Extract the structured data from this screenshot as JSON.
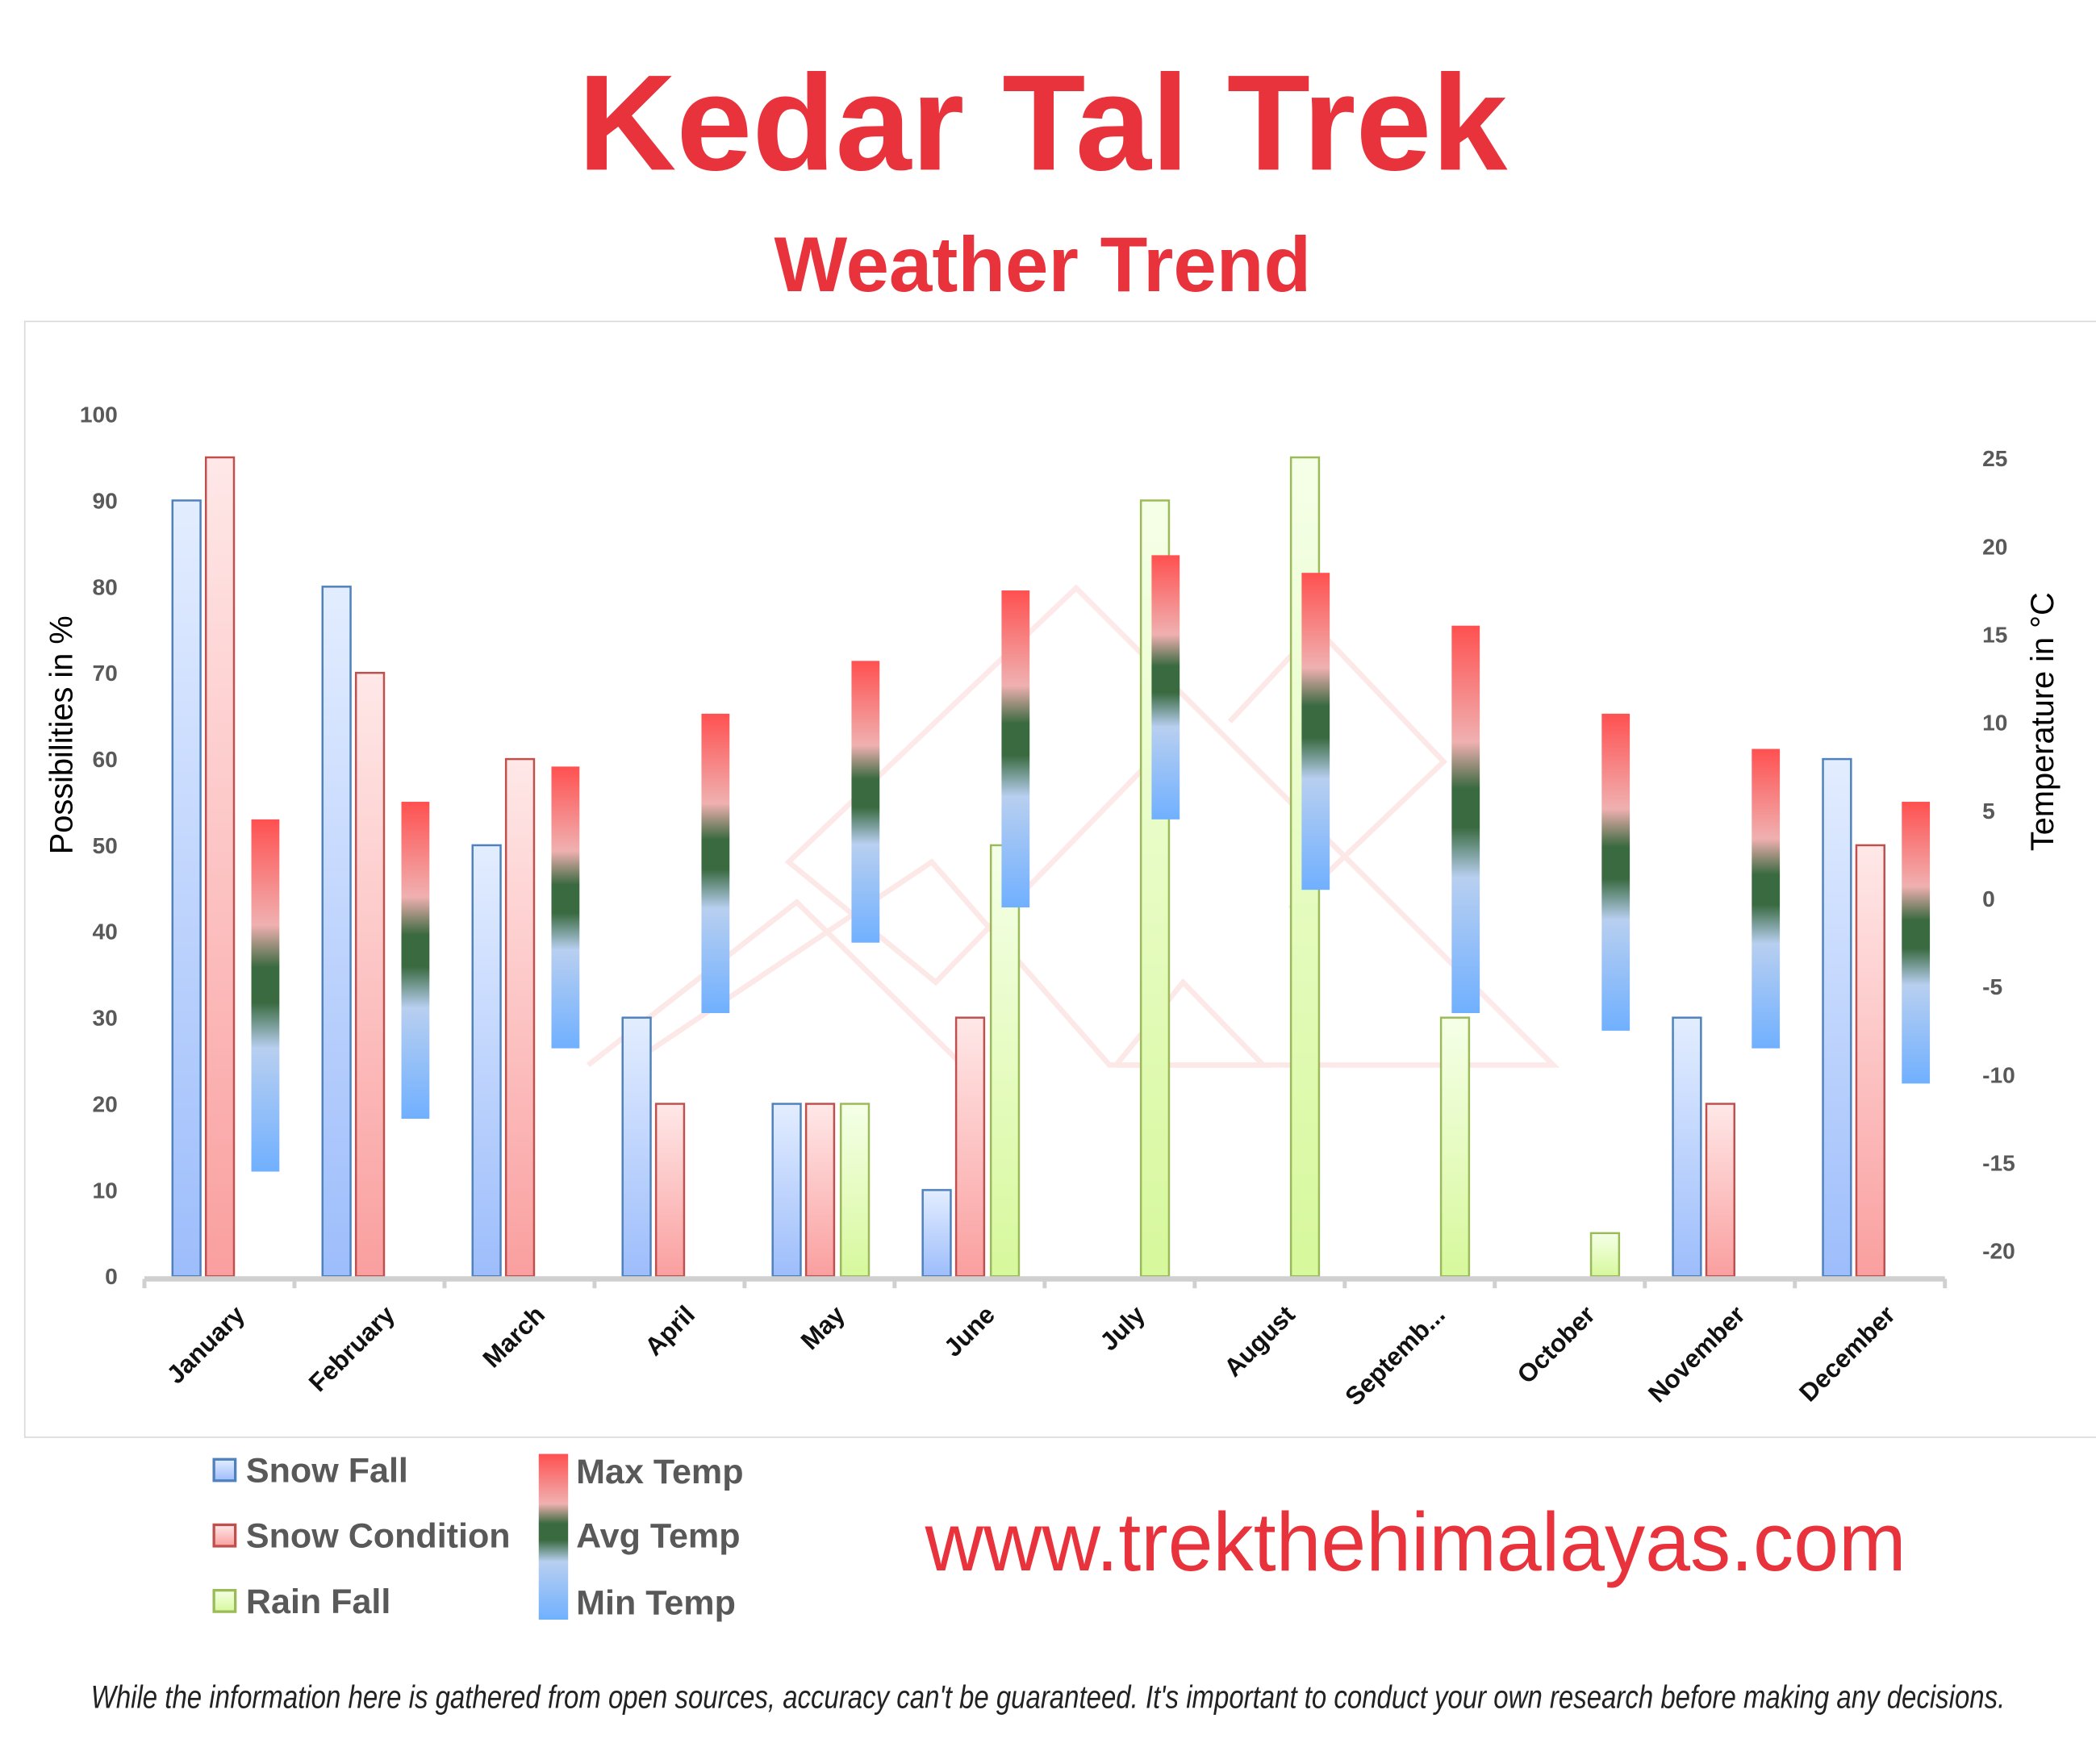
{
  "header": {
    "title": "Kedar Tal Trek",
    "subtitle": "Weather Trend"
  },
  "colors": {
    "title": "#e8323c",
    "snow_fall": "#4f81bd",
    "snow_condition": "#c0504d",
    "rain_fall": "#9bbb59",
    "max_temp": "#ff5050",
    "avg_temp": "#3a6a40",
    "min_temp": "#70b0ff"
  },
  "chart_data": {
    "type": "bar",
    "categories": [
      "January",
      "February",
      "March",
      "April",
      "May",
      "June",
      "July",
      "August",
      "Septemb...",
      "October",
      "November",
      "December"
    ],
    "ylabel": "Possibilities in %",
    "ylim": [
      0,
      100
    ],
    "yticks": [
      "0",
      "10",
      "20",
      "30",
      "40",
      "50",
      "60",
      "70",
      "80",
      "90",
      "100"
    ],
    "y2label": "Temperature in °C",
    "y2lim": [
      -20,
      25
    ],
    "y2ticks": [
      "-20",
      "-15",
      "-10",
      "-5",
      "0",
      "5",
      "10",
      "15",
      "20",
      "25"
    ],
    "grid": false,
    "legend_position": "bottom-left",
    "series": [
      {
        "name": "Snow Fall",
        "axis": "left",
        "values": [
          90,
          80,
          50,
          30,
          20,
          10,
          0,
          0,
          0,
          0,
          30,
          60
        ]
      },
      {
        "name": "Snow Condition",
        "axis": "left",
        "values": [
          95,
          70,
          60,
          20,
          20,
          30,
          0,
          0,
          0,
          0,
          20,
          50
        ]
      },
      {
        "name": "Rain Fall",
        "axis": "left",
        "values": [
          0,
          0,
          0,
          0,
          20,
          50,
          90,
          95,
          30,
          5,
          0,
          0
        ]
      },
      {
        "name": "Max Temp",
        "axis": "right",
        "values": [
          4.5,
          5.5,
          7.5,
          10.5,
          13.5,
          17.5,
          19.5,
          18.5,
          15.5,
          10.5,
          8.5,
          5.5
        ]
      },
      {
        "name": "Avg Temp",
        "axis": "right",
        "values": [
          -5.5,
          -3.5,
          -0.5,
          2,
          5.5,
          8.5,
          12,
          9.5,
          4.5,
          1.5,
          0,
          -2.5
        ]
      },
      {
        "name": "Min Temp",
        "axis": "right",
        "values": [
          -15.5,
          -12.5,
          -8.5,
          -6.5,
          -2.5,
          -0.5,
          4.5,
          0.5,
          -6.5,
          -7.5,
          -8.5,
          -10.5
        ]
      }
    ]
  },
  "footer": {
    "website": "www.trekthehimalayas.com",
    "disclaimer": "While the information here is gathered from open sources, accuracy can't be guaranteed. It's important to conduct your own research before making any decisions."
  }
}
